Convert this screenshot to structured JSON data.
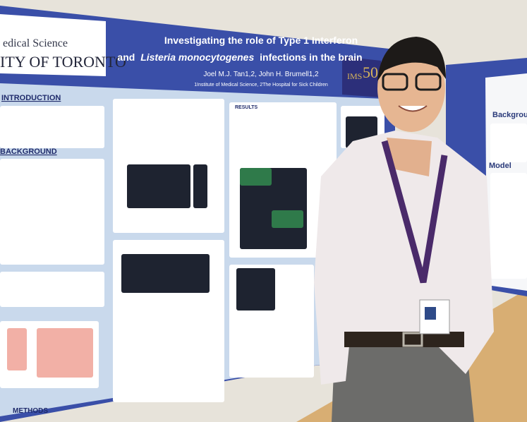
{
  "poster": {
    "logo": {
      "line1": "edical Science",
      "line2": "ITY OF TORONTO"
    },
    "title": {
      "line1": "Investigating the role of Type 1 Interferon",
      "line2_start": "and",
      "line2_species": "Listeria monocytogenes",
      "line2_end": "infections in the brain"
    },
    "authors": "Joel M.J. Tan1,2, John H. Brumell1,2",
    "affiliations": "1Institute of Medical Science, 2The Hospital for Sick Children",
    "badge": {
      "text": "IMS",
      "number": "50"
    },
    "sections": {
      "introduction": "INTRODUCTION",
      "background": "BACKGROUND",
      "results": "RESULTS",
      "methods": "METHODS"
    }
  },
  "side_poster": {
    "background": "Background",
    "model": "Model"
  }
}
